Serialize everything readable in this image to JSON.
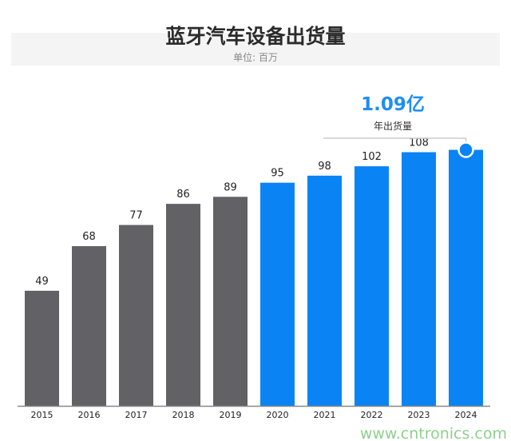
{
  "chart_data": {
    "type": "bar",
    "title": "蓝牙汽车设备出货量",
    "subtitle": "单位: 百万",
    "categories": [
      "2015",
      "2016",
      "2017",
      "2018",
      "2019",
      "2020",
      "2021",
      "2022",
      "2023",
      "2024"
    ],
    "values": [
      49,
      68,
      77,
      86,
      89,
      95,
      98,
      102,
      108,
      109
    ],
    "data_labels": [
      "49",
      "68",
      "77",
      "86",
      "89",
      "95",
      "98",
      "102",
      "108",
      ""
    ],
    "colors": {
      "historical": "#626266",
      "forecast": "#0a84f5",
      "axis": "#888888"
    },
    "forecast_from": "2020",
    "annotation": {
      "value_text": "1.09亿",
      "label": "年出货量",
      "target": "2024"
    },
    "ylim": [
      0,
      115
    ],
    "grid": false,
    "legend": "none"
  },
  "watermark": "www.cntronics.com"
}
